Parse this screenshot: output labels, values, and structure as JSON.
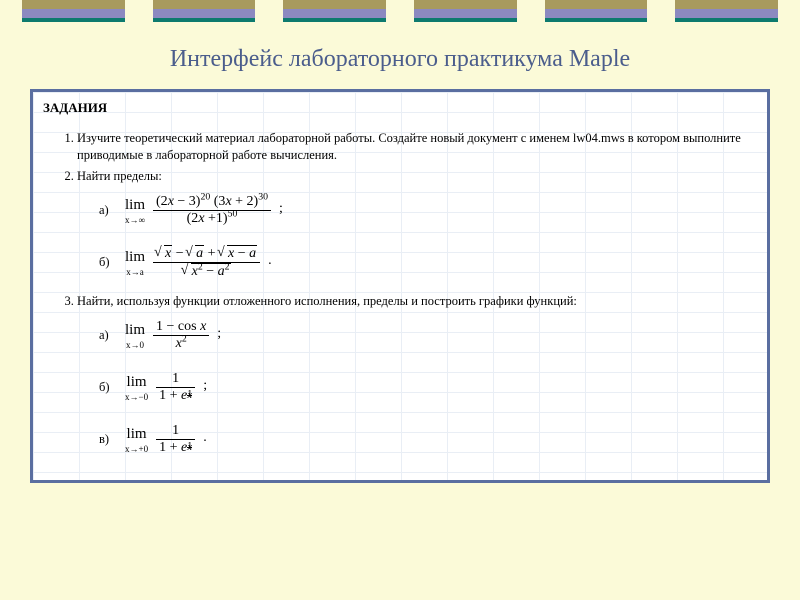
{
  "colors": {
    "page_bg": "#fbfad8",
    "title": "#4b5d8c",
    "panel_border": "#5a6ea0",
    "grid": "#e9eef5",
    "bar_top": "#a89a5e",
    "bar_mid": "#8c89c0",
    "bar_bottom": "#0d7a6e"
  },
  "title": "Интерфейс лабораторного практикума Maple",
  "panel": {
    "heading": "ЗАДАНИЯ",
    "items": [
      {
        "text": "Изучите теоретический материал лабораторной работы. Создайте новый документ с именем lw04.mws в котором выполните приводимые в лабораторной работе вычисления."
      },
      {
        "text": "Найти пределы:",
        "sub": [
          {
            "label": "а)",
            "limit_to": "x→∞",
            "numerator": "(2x − 3)^{20} (3x + 2)^{30}",
            "denominator": "(2x + 1)^{50}",
            "trail": ";"
          },
          {
            "label": "б)",
            "limit_to": "x→a",
            "numerator": "√x − √a + √(x − a)",
            "denominator": "√(x^2 − a^2)",
            "trail": "."
          }
        ]
      },
      {
        "text": "Найти, используя функции отложенного исполнения, пределы и построить графики функций:",
        "sub": [
          {
            "label": "а)",
            "limit_to": "x→0",
            "numerator": "1 − cos x",
            "denominator": "x^2",
            "trail": ";"
          },
          {
            "label": "б)",
            "limit_to": "x→−0",
            "numerator": "1",
            "denominator": "1 + e^{1/x}",
            "trail": ";"
          },
          {
            "label": "в)",
            "limit_to": "x→+0",
            "numerator": "1",
            "denominator": "1 + e^{1/x}",
            "trail": "."
          }
        ]
      }
    ]
  }
}
